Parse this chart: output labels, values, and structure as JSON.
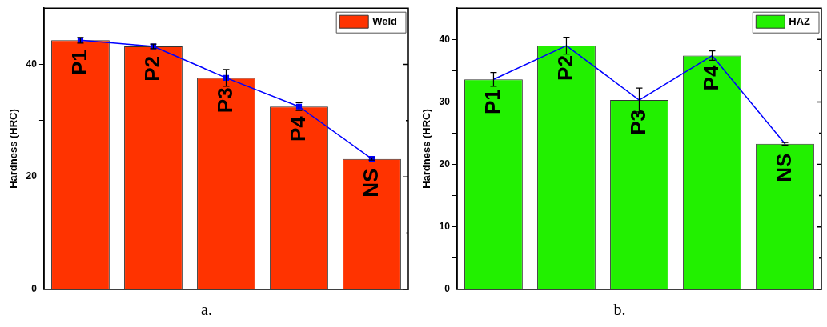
{
  "chart_data": [
    {
      "type": "bar",
      "ylabel": "Hardness (HRC)",
      "categories": [
        "P1",
        "P2",
        "P3",
        "P4",
        "NS"
      ],
      "ylim": [
        0,
        50
      ],
      "yticks": [
        0,
        {
          "value": 10,
          "label": null
        },
        20,
        {
          "value": 30,
          "label": null
        },
        40
      ],
      "grid": false,
      "legend": "top right",
      "annotations": [
        "a."
      ],
      "series": [
        {
          "name": "Weld",
          "color": "#ff3300",
          "values": [
            44.3,
            43.2,
            37.6,
            32.5,
            23.2
          ]
        },
        {
          "type": "line",
          "color": "#0000ff",
          "marker": "square",
          "values": [
            44.3,
            43.2,
            37.6,
            32.5,
            23.2
          ],
          "errors": [
            0.5,
            0.4,
            1.5,
            0.7,
            0.2
          ]
        }
      ]
    },
    {
      "type": "bar",
      "ylabel": "Hardness (HRC)",
      "categories": [
        "P1",
        "P2",
        "P3",
        "P4",
        "NS"
      ],
      "ylim": [
        0,
        45
      ],
      "yticks": [
        0,
        {
          "value": 5,
          "label": null
        },
        10,
        {
          "value": 15,
          "label": null
        },
        20,
        {
          "value": 25,
          "label": null
        },
        30,
        {
          "value": 35,
          "label": null
        },
        40
      ],
      "grid": false,
      "legend": "top right",
      "annotations": [
        "b."
      ],
      "series": [
        {
          "name": "HAZ",
          "color": "#22f000",
          "values": [
            33.6,
            39.0,
            30.3,
            37.4,
            23.3
          ]
        },
        {
          "type": "line",
          "color": "#0000ff",
          "marker": "none",
          "values": [
            33.6,
            39.0,
            30.3,
            37.4,
            23.3
          ],
          "errors": [
            1.1,
            1.35,
            1.9,
            0.75,
            0.2
          ]
        }
      ]
    }
  ]
}
